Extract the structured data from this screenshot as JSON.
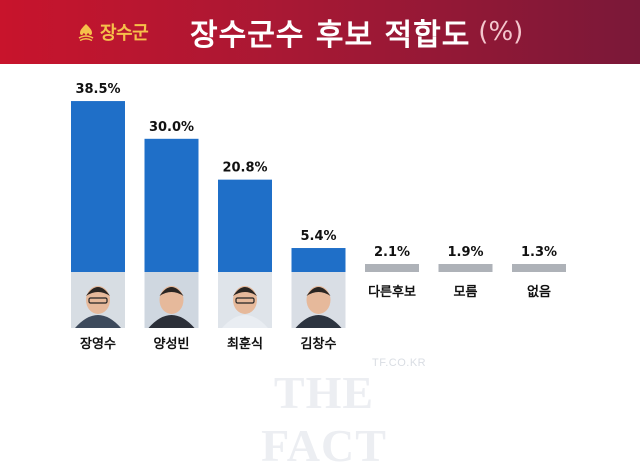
{
  "header": {
    "logo_text": "장수군",
    "title": "장수군수 후보 적합도",
    "unit": "(%)"
  },
  "colors": {
    "header_red": "#c8142c",
    "header_dark": "#7a1838",
    "logo_gold": "#f6c04a",
    "bar_blue": "#1f6fc8",
    "bar_gray": "#aeb2b8"
  },
  "chart_data": {
    "type": "bar",
    "title": "장수군수 후보 적합도",
    "unit": "%",
    "categories": [
      "장영수",
      "양성빈",
      "최훈식",
      "김창수",
      "다른후보",
      "모름",
      "없음"
    ],
    "values": [
      38.5,
      30.0,
      20.8,
      5.4,
      2.1,
      1.9,
      1.3
    ],
    "value_labels": [
      "38.5%",
      "30.0%",
      "20.8%",
      "5.4%",
      "2.1%",
      "1.9%",
      "1.3%"
    ],
    "has_photo": [
      true,
      true,
      true,
      true,
      false,
      false,
      false
    ],
    "grid": false,
    "legend": "none"
  },
  "watermark": {
    "site": "TF.CO.KR",
    "brand": "THE FACT"
  }
}
